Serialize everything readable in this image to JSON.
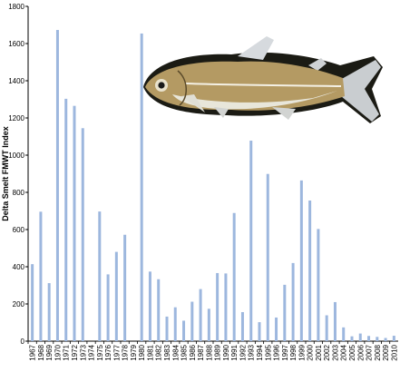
{
  "chart_data": {
    "type": "bar",
    "title": "",
    "xlabel": "",
    "ylabel": "Delta Smelt FMWT Index",
    "ylim": [
      0,
      1800
    ],
    "yticks": [
      0,
      200,
      400,
      600,
      800,
      1000,
      1200,
      1400,
      1600,
      1800
    ],
    "grid": false,
    "legend": "none",
    "bar_color": "#9db7de",
    "categories": [
      "1967",
      "1968",
      "1969",
      "1970",
      "1971",
      "1972",
      "1973",
      "1974",
      "1975",
      "1976",
      "1977",
      "1978",
      "1979",
      "1980",
      "1981",
      "1982",
      "1983",
      "1984",
      "1985",
      "1986",
      "1987",
      "1988",
      "1989",
      "1990",
      "1991",
      "1992",
      "1993",
      "1994",
      "1995",
      "1996",
      "1997",
      "1998",
      "1999",
      "2000",
      "2001",
      "2002",
      "2003",
      "2004",
      "2005",
      "2006",
      "2007",
      "2008",
      "2009",
      "2010"
    ],
    "values": [
      414,
      696,
      312,
      1673,
      1303,
      1265,
      1145,
      0,
      697,
      359,
      480,
      572,
      0,
      1654,
      374,
      333,
      132,
      182,
      110,
      212,
      280,
      174,
      366,
      364,
      689,
      156,
      1078,
      102,
      899,
      127,
      303,
      420,
      864,
      756,
      603,
      139,
      210,
      74,
      26,
      41,
      28,
      23,
      17,
      29
    ]
  }
}
